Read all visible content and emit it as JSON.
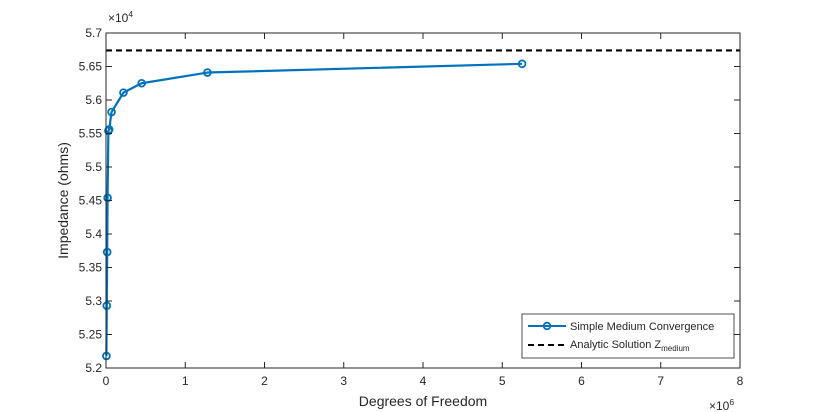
{
  "chart_data": {
    "type": "line",
    "xlabel": "Degrees of Freedom",
    "ylabel": "Impedance (ohms)",
    "x_exponent_label": {
      "base": "×10",
      "power": "6"
    },
    "y_exponent_label": {
      "base": "×10",
      "power": "4"
    },
    "xlim": [
      0,
      8
    ],
    "ylim": [
      5.2,
      5.7
    ],
    "x_ticks": [
      0,
      1,
      2,
      3,
      4,
      5,
      6,
      7,
      8
    ],
    "x_tick_labels": [
      "0",
      "1",
      "2",
      "3",
      "4",
      "5",
      "6",
      "7",
      "8"
    ],
    "y_ticks": [
      5.2,
      5.25,
      5.3,
      5.35,
      5.4,
      5.45,
      5.5,
      5.55,
      5.6,
      5.65,
      5.7
    ],
    "y_tick_labels": [
      "5.2",
      "5.25",
      "5.3",
      "5.35",
      "5.4",
      "5.45",
      "5.5",
      "5.55",
      "5.6",
      "5.65",
      "5.7"
    ],
    "grid": false,
    "legend_position": "bottom-right",
    "series": [
      {
        "name": "Simple Medium Convergence",
        "style": "line-circle",
        "color": "#0072BD",
        "points": [
          {
            "x": 0.005,
            "y": 5.218
          },
          {
            "x": 0.01,
            "y": 5.293
          },
          {
            "x": 0.015,
            "y": 5.373
          },
          {
            "x": 0.02,
            "y": 5.454
          },
          {
            "x": 0.03,
            "y": 5.554
          },
          {
            "x": 0.04,
            "y": 5.556
          },
          {
            "x": 0.07,
            "y": 5.582
          },
          {
            "x": 0.22,
            "y": 5.611
          },
          {
            "x": 0.45,
            "y": 5.625
          },
          {
            "x": 1.28,
            "y": 5.641
          },
          {
            "x": 5.25,
            "y": 5.654
          }
        ]
      },
      {
        "name_base": "Analytic Solution Z",
        "name_sub": "medium",
        "style": "dashed",
        "color": "#000000",
        "y": 5.674
      }
    ]
  }
}
